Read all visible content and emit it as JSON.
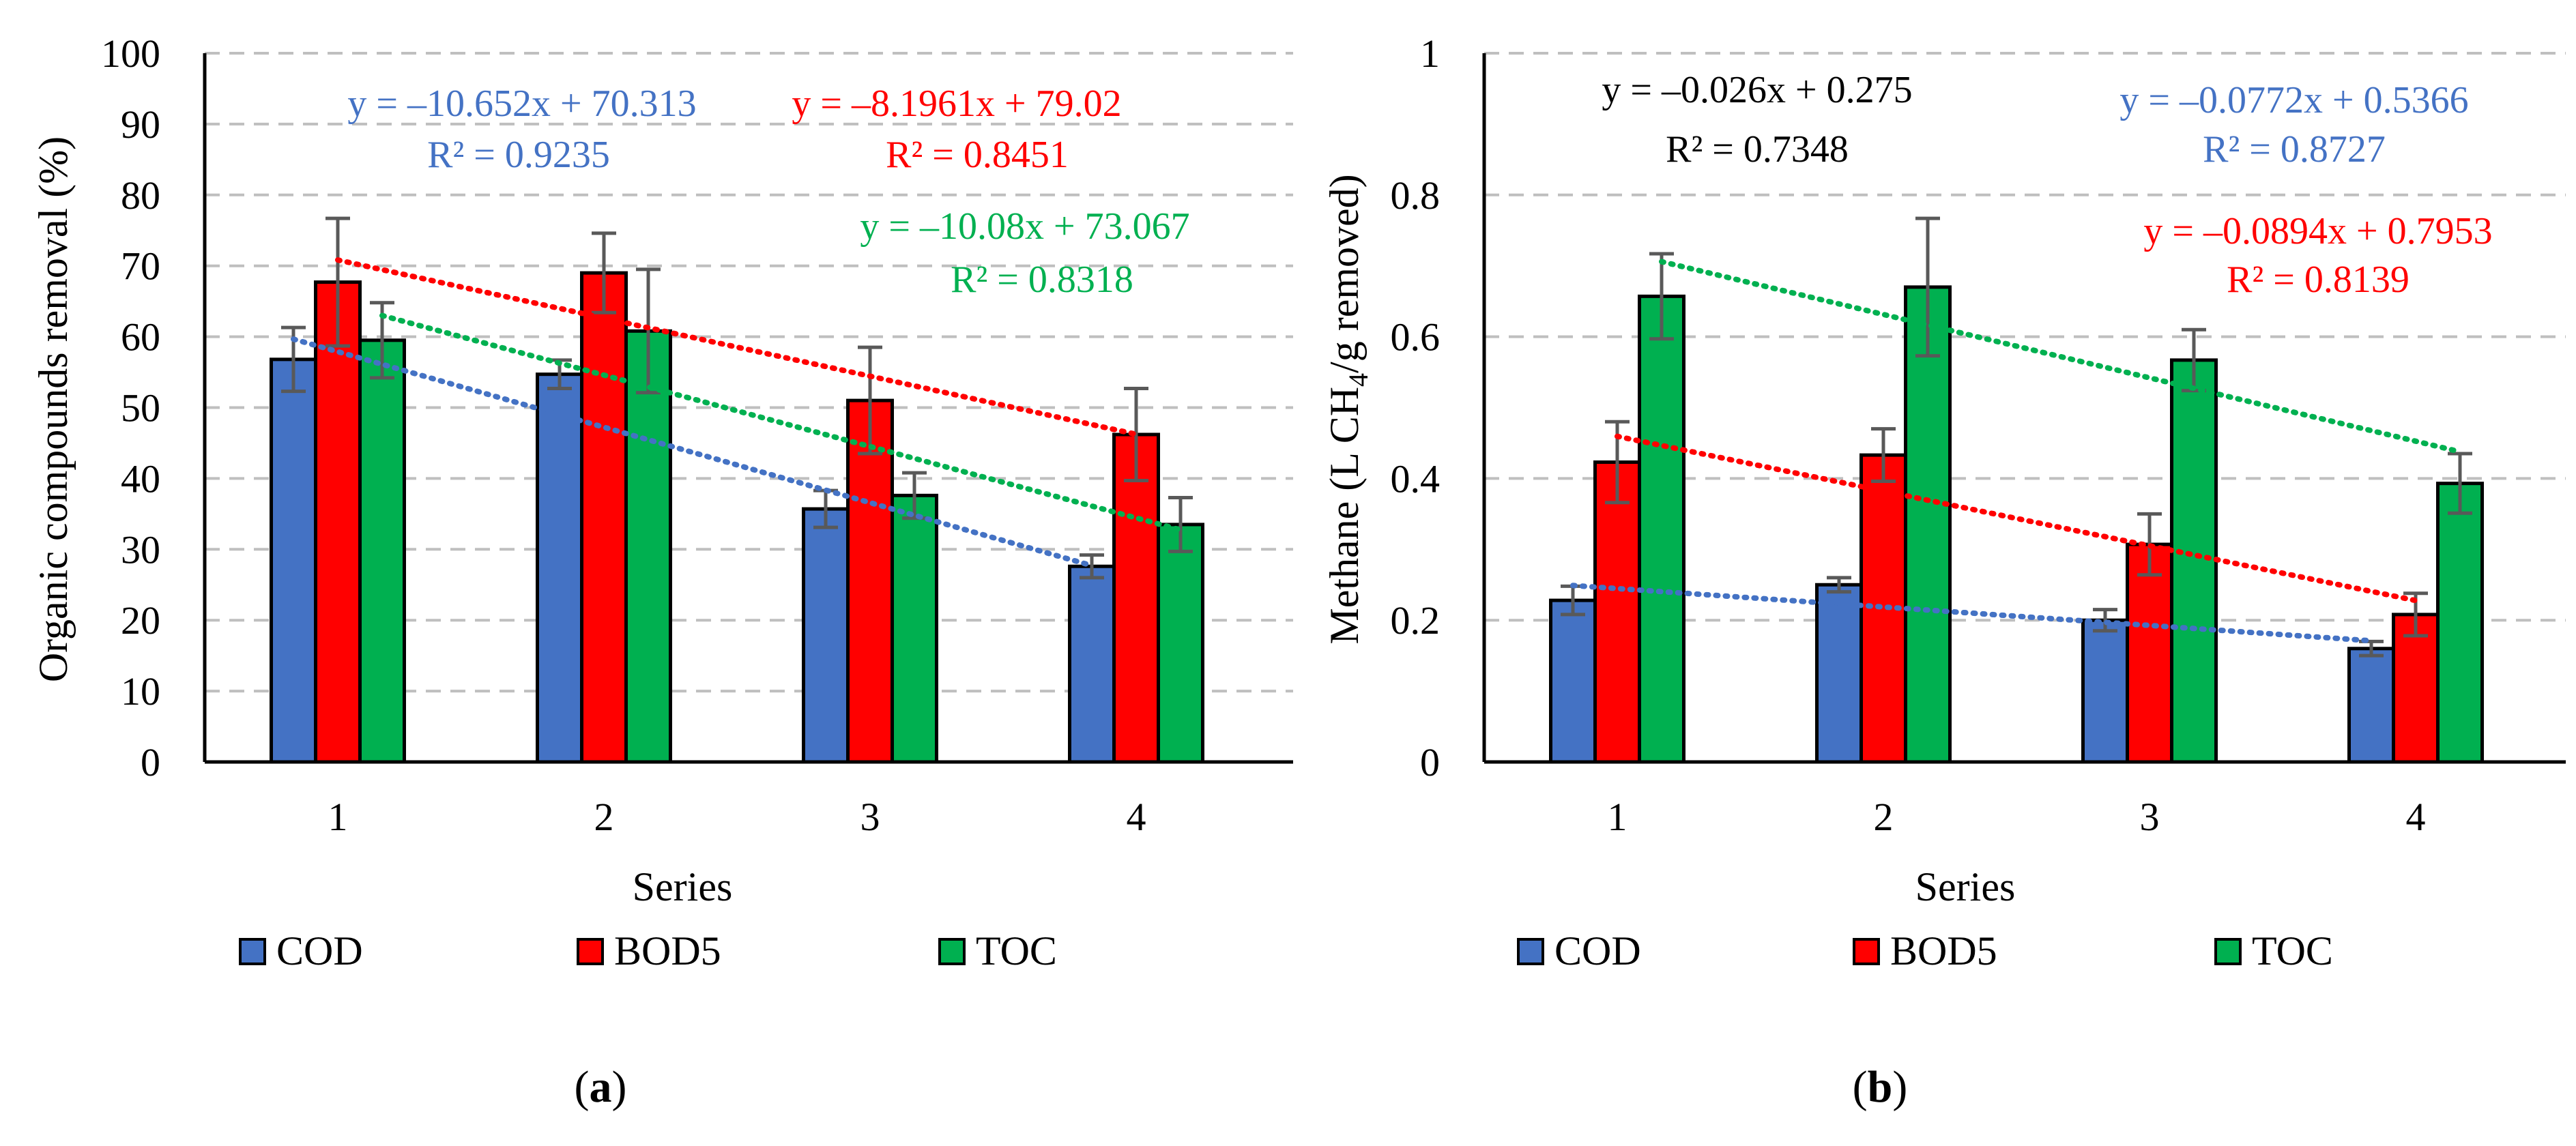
{
  "chart_data": [
    {
      "type": "bar",
      "panel_label": "a",
      "categories": [
        "1",
        "2",
        "3",
        "4"
      ],
      "xlabel": "Series",
      "ylabel": "Organic compounds removal (%)",
      "ylim": [
        0,
        100
      ],
      "yticks": [
        0,
        10,
        20,
        30,
        40,
        50,
        60,
        70,
        80,
        90,
        100
      ],
      "grid": true,
      "legend_position": "bottom",
      "series": [
        {
          "name": "COD",
          "color": "#4472C4",
          "values": [
            56.8,
            54.7,
            35.7,
            27.6
          ],
          "errors": [
            4.5,
            2.0,
            2.6,
            1.6
          ]
        },
        {
          "name": "BOD5",
          "color": "#FF0000",
          "values": [
            67.7,
            69.0,
            51.0,
            46.2
          ],
          "errors": [
            9.0,
            5.6,
            7.5,
            6.5
          ]
        },
        {
          "name": "TOC",
          "color": "#00B050",
          "values": [
            59.5,
            60.8,
            37.6,
            33.5
          ],
          "errors": [
            5.3,
            8.7,
            3.2,
            3.8
          ]
        }
      ],
      "trendlines": [
        {
          "series": "COD",
          "color": "#4472C4",
          "slope": -10.652,
          "intercept": 70.313,
          "equation": "y = –10.652x + 70.313",
          "r2": "R² = 0.9235"
        },
        {
          "series": "BOD5",
          "color": "#FF0000",
          "slope": -8.1961,
          "intercept": 79.02,
          "equation": "y = –8.1961x + 79.02",
          "r2": "R² = 0.8451"
        },
        {
          "series": "TOC",
          "color": "#00B050",
          "slope": -10.08,
          "intercept": 73.067,
          "equation": "y = –10.08x + 73.067",
          "r2": "R² = 0.8318"
        }
      ]
    },
    {
      "type": "bar",
      "panel_label": "b",
      "categories": [
        "1",
        "2",
        "3",
        "4"
      ],
      "xlabel": "Series",
      "ylabel_main": "Methane (L CH",
      "ylabel_sub": "4",
      "ylabel_rest": "/g removed)",
      "ylim": [
        0,
        1
      ],
      "yticks": [
        0,
        0.2,
        0.4,
        0.6,
        0.8,
        1
      ],
      "ytick_labels": [
        "0",
        "0.2",
        "0.4",
        "0.6",
        "0.8",
        "1"
      ],
      "grid": true,
      "legend_position": "bottom",
      "series": [
        {
          "name": "COD",
          "color": "#4472C4",
          "values": [
            0.228,
            0.25,
            0.2,
            0.16
          ],
          "errors": [
            0.02,
            0.01,
            0.015,
            0.01
          ]
        },
        {
          "name": "BOD5",
          "color": "#FF0000",
          "values": [
            0.423,
            0.433,
            0.307,
            0.208
          ],
          "errors": [
            0.057,
            0.037,
            0.043,
            0.03
          ]
        },
        {
          "name": "TOC",
          "color": "#00B050",
          "values": [
            0.657,
            0.67,
            0.567,
            0.393
          ],
          "errors": [
            0.06,
            0.097,
            0.043,
            0.042
          ]
        }
      ],
      "trendlines": [
        {
          "series": "COD",
          "color": "#4472C4",
          "slope": -0.026,
          "intercept": 0.275,
          "equation": "y = –0.026x + 0.275",
          "r2": "R² = 0.7348",
          "label_color": "#000000"
        },
        {
          "series": "BOD5",
          "color": "#FF0000",
          "slope": -0.0772,
          "intercept": 0.5366,
          "equation": "y = –0.0772x + 0.5366",
          "r2": "R² = 0.8727",
          "label_color": "#4472C4"
        },
        {
          "series": "TOC",
          "color": "#00B050",
          "slope": -0.0894,
          "intercept": 0.7953,
          "equation": "y = –0.0894x + 0.7953",
          "r2": "R² = 0.8139",
          "label_color": "#FF0000"
        }
      ]
    }
  ]
}
